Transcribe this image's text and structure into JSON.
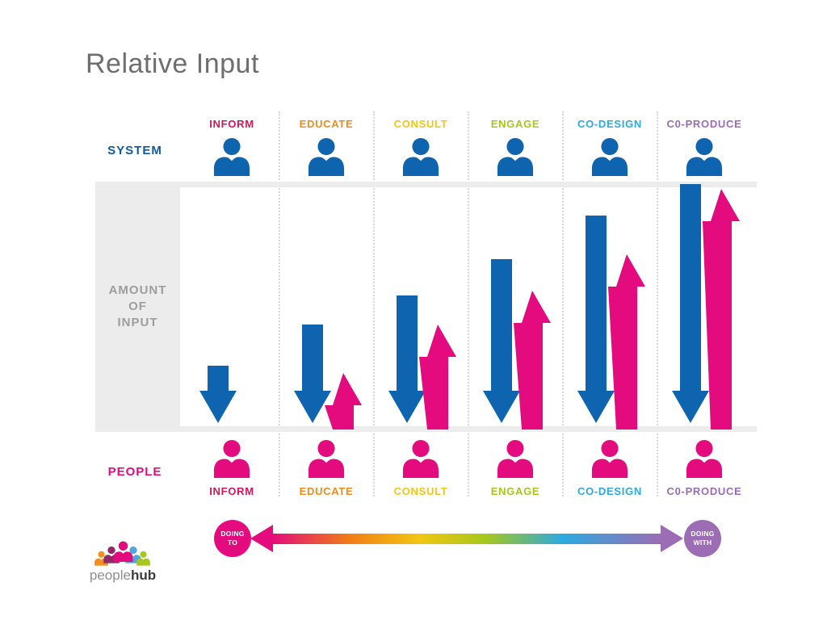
{
  "title": "Relative Input",
  "rows": {
    "system": {
      "label": "SYSTEM",
      "color": "#0D5AA7"
    },
    "people": {
      "label": "PEOPLE",
      "color": "#E30B7D"
    }
  },
  "axis": {
    "label": "AMOUNT\nOF\nINPUT"
  },
  "chart_data": {
    "type": "bar",
    "title": "Relative Input",
    "ylabel": "AMOUNT OF INPUT",
    "ylim": [
      0,
      100
    ],
    "grid": "dotted-column-separators",
    "legend_position": "none",
    "categories": [
      "INFORM",
      "EDUCATE",
      "CONSULT",
      "ENGAGE",
      "CO-DESIGN",
      "C0-PRODUCE"
    ],
    "category_colors": [
      "#D4155E",
      "#F28A1A",
      "#F3C613",
      "#A6C71C",
      "#2BA9E0",
      "#9C6CB4"
    ],
    "series": [
      {
        "name": "SYSTEM",
        "direction": "down",
        "color": "#0F64B0",
        "values": [
          25,
          42,
          54,
          69,
          87,
          100
        ]
      },
      {
        "name": "PEOPLE",
        "direction": "up",
        "color": "#E30B7D",
        "values": [
          0,
          22,
          42,
          56,
          71,
          98
        ]
      }
    ]
  },
  "spectrum": {
    "left_circle": {
      "label": "DOING\nTO",
      "color": "#E30B7D"
    },
    "right_circle": {
      "label": "DOING\nWITH",
      "color": "#9C6CB4"
    },
    "gradient_colors": [
      "#E30B7D",
      "#F07D16",
      "#F3C613",
      "#A6C71C",
      "#2BA9E0",
      "#9C6CB4"
    ]
  },
  "logo": {
    "word_light": "people",
    "word_bold": "hub",
    "figure_colors": [
      "#F2901E",
      "#8F2A67",
      "#E30B7D",
      "#53A6DB",
      "#A6C71C"
    ]
  }
}
